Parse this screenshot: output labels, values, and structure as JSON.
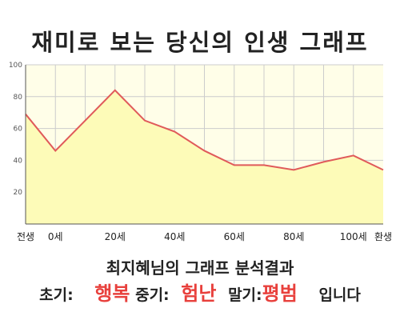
{
  "title": "재미로 보는 당신의 인생 그래프",
  "colors": {
    "line": "#e05a5a",
    "fill": "#fdfbb8",
    "plot_background": "#fffee8",
    "grid": "#cccccc",
    "axis": "#555555",
    "highlight": "#e8403c"
  },
  "chart_data": {
    "type": "area",
    "categories": [
      "전생",
      "0세",
      "",
      "20세",
      "",
      "40세",
      "",
      "60세",
      "",
      "80세",
      "",
      "100세",
      "환생"
    ],
    "values": [
      69,
      46,
      65,
      84,
      65,
      58,
      46,
      37,
      37,
      34,
      39,
      43,
      34
    ],
    "y_ticks": [
      "20",
      "40",
      "60",
      "80",
      "100"
    ],
    "ylim": [
      0,
      100
    ],
    "grid": true,
    "legend": "none"
  },
  "summary": {
    "title": "최지혜님의 그래프 분석결과",
    "early_label": "초기:",
    "early_value": "행복",
    "middle_label": "중기:",
    "middle_value": "험난",
    "late_label": "말기:",
    "late_value": "평범",
    "ending": "입니다"
  }
}
